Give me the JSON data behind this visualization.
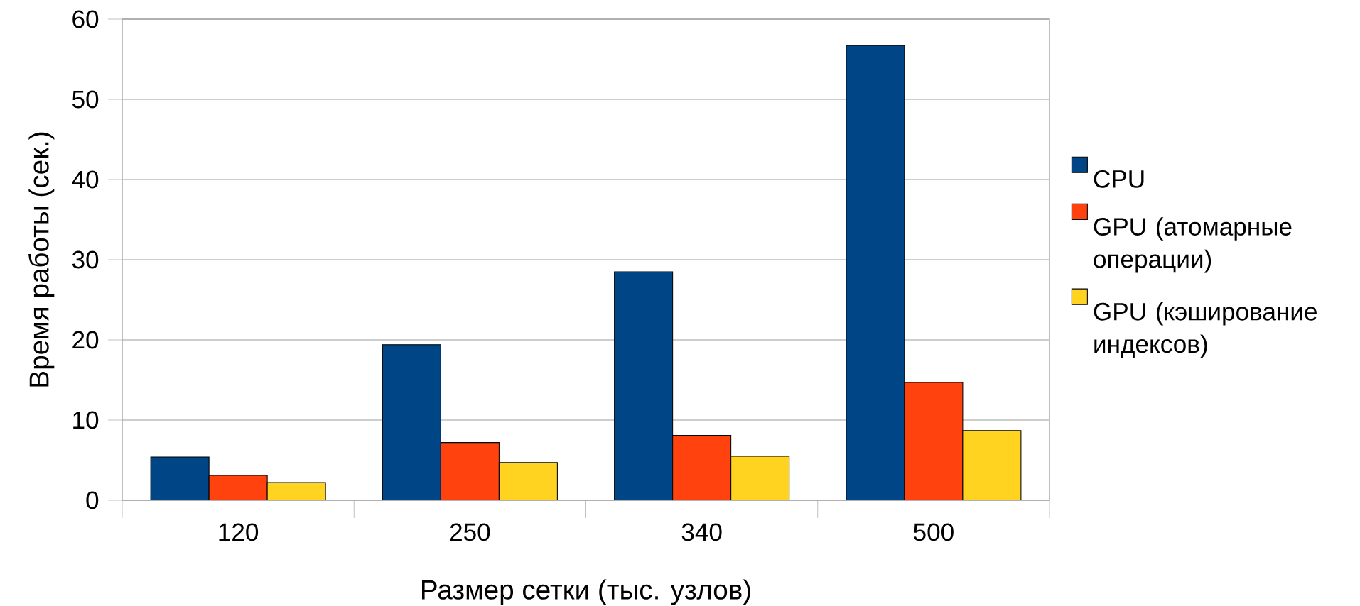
{
  "chart_data": {
    "type": "bar",
    "xlabel": "Размер сетки (тыс. узлов)",
    "ylabel": "Время работы (сек.)",
    "categories": [
      "120",
      "250",
      "340",
      "500"
    ],
    "series": [
      {
        "name": "CPU",
        "color": "#004586",
        "values": [
          5.4,
          19.4,
          28.5,
          56.7
        ]
      },
      {
        "name": "GPU (атомарные операции)",
        "color": "#ff420e",
        "values": [
          3.1,
          7.2,
          8.1,
          14.7
        ]
      },
      {
        "name": "GPU (кэширование индексов)",
        "color": "#ffd320",
        "values": [
          2.2,
          4.7,
          5.5,
          8.7
        ]
      }
    ],
    "ylim": [
      0,
      60
    ],
    "yticks": [
      0,
      10,
      20,
      30,
      40,
      50,
      60
    ],
    "grid": "y",
    "legend": "right"
  }
}
